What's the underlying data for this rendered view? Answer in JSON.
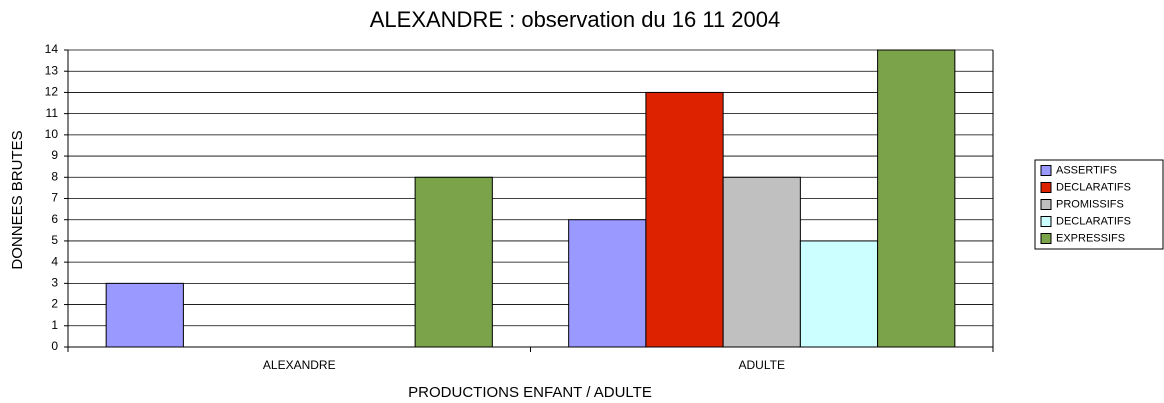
{
  "chart_data": {
    "type": "bar",
    "title": "ALEXANDRE : observation du 16 11 2004",
    "x_label": "PRODUCTIONS ENFANT / ADULTE",
    "y_label": "DONNEES BRUTES",
    "categories": [
      "ALEXANDRE",
      "ADULTE"
    ],
    "series": [
      {
        "name": "ASSERTIFS",
        "color": "#9999ff",
        "values": [
          3,
          6
        ]
      },
      {
        "name": "DECLARATIFS",
        "color": "#dd2200",
        "values": [
          0,
          12
        ]
      },
      {
        "name": "PROMISSIFS",
        "color": "#c0c0c0",
        "values": [
          0,
          8
        ]
      },
      {
        "name": "DECLARATIFS",
        "color": "#ccffff",
        "values": [
          0,
          5
        ]
      },
      {
        "name": "EXPRESSIFS",
        "color": "#7ba34a",
        "values": [
          8,
          14
        ]
      }
    ],
    "ylim": [
      0,
      14
    ],
    "yticks": [
      0,
      1,
      2,
      3,
      4,
      5,
      6,
      7,
      8,
      9,
      10,
      11,
      12,
      13,
      14
    ],
    "grid": true,
    "legend": "right"
  }
}
